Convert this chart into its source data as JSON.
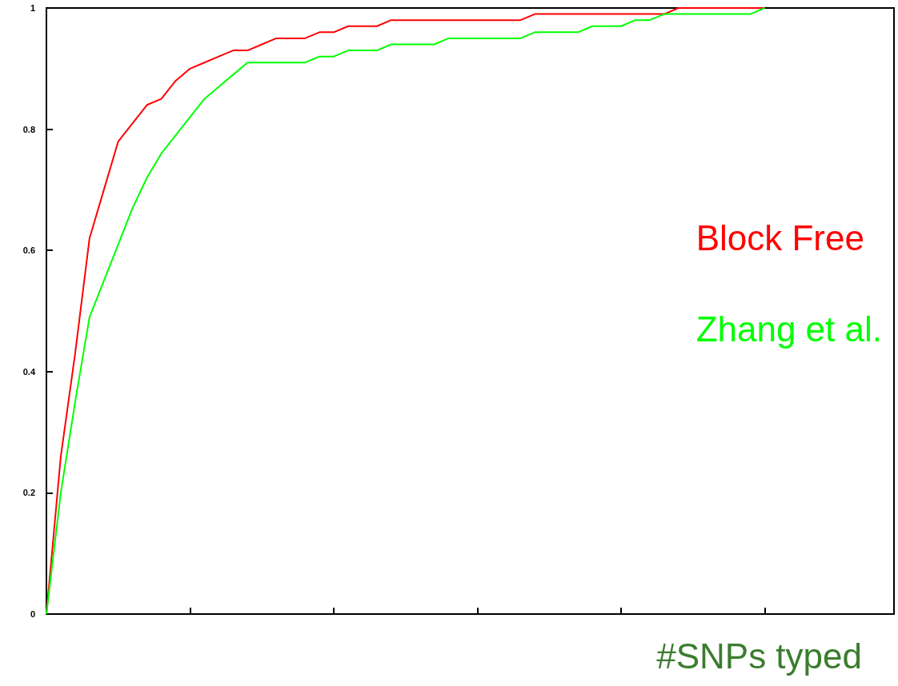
{
  "chart_data": {
    "type": "line",
    "xlabel": "#SNPs typed",
    "categories": [
      null,
      null,
      null,
      null,
      null,
      null,
      null,
      null,
      null,
      null,
      null,
      null,
      null,
      null,
      null,
      null,
      null,
      null,
      null,
      null,
      null,
      null,
      null,
      null,
      null,
      null,
      null,
      null,
      null,
      null,
      null,
      null,
      null,
      null,
      null,
      null,
      null,
      null,
      null,
      null,
      null,
      null,
      null,
      null,
      null,
      null,
      null,
      null,
      null,
      null,
      null,
      null,
      null,
      null,
      null,
      null,
      null,
      null,
      null,
      null
    ],
    "series": [
      {
        "name": "Block Free",
        "color": "#ff0000",
        "values": [
          0,
          0.26,
          0.43,
          0.62,
          0.7,
          0.78,
          0.81,
          0.84,
          0.85,
          0.88,
          0.9,
          0.91,
          0.92,
          0.93,
          0.93,
          0.94,
          0.95,
          0.95,
          0.95,
          0.96,
          0.96,
          0.97,
          0.97,
          0.97,
          0.98,
          0.98,
          0.98,
          0.98,
          0.98,
          0.98,
          0.98,
          0.98,
          0.98,
          0.98,
          0.99,
          0.99,
          0.99,
          0.99,
          0.99,
          0.99,
          0.99,
          0.99,
          0.99,
          0.99,
          1,
          1,
          1,
          1,
          1,
          1,
          1,
          null,
          null,
          null,
          null,
          null,
          null,
          null,
          null,
          null
        ]
      },
      {
        "name": "Zhang et al.",
        "color": "#00ff00",
        "values": [
          0,
          0.2,
          0.35,
          0.49,
          0.55,
          0.61,
          0.67,
          0.72,
          0.76,
          0.79,
          0.82,
          0.85,
          0.87,
          0.89,
          0.91,
          0.91,
          0.91,
          0.91,
          0.91,
          0.92,
          0.92,
          0.93,
          0.93,
          0.93,
          0.94,
          0.94,
          0.94,
          0.94,
          0.95,
          0.95,
          0.95,
          0.95,
          0.95,
          0.95,
          0.96,
          0.96,
          0.96,
          0.96,
          0.97,
          0.97,
          0.97,
          0.98,
          0.98,
          0.99,
          0.99,
          0.99,
          0.99,
          0.99,
          0.99,
          0.99,
          1,
          null,
          null,
          null,
          null,
          null,
          null,
          null,
          null,
          null
        ]
      }
    ],
    "ylim": [
      0,
      1
    ],
    "yticks": [
      0,
      0.2,
      0.4,
      0.6,
      0.8,
      1
    ],
    "grid": false,
    "legend": "right",
    "marker": "none",
    "line_style": "solid"
  }
}
